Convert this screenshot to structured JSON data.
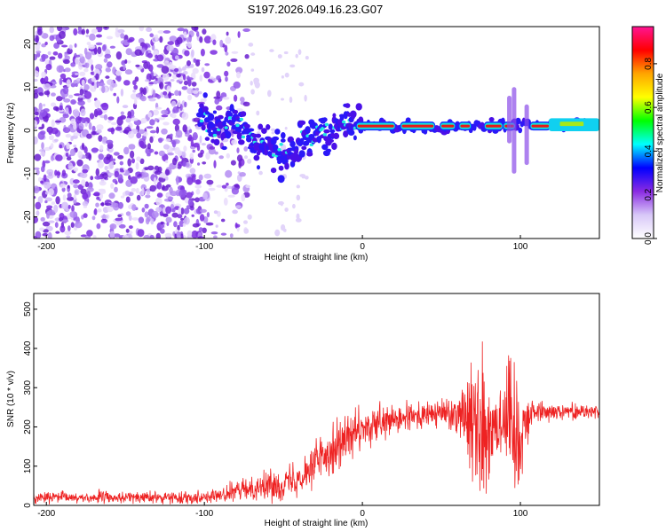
{
  "title": "S197.2026.049.16.23.G07",
  "chart_data": [
    {
      "type": "heatmap",
      "name": "spectrogram",
      "xlabel": "Height of straight line (km)",
      "ylabel": "Frequency (Hz)",
      "xlim": [
        -208,
        150
      ],
      "ylim": [
        -25,
        24
      ],
      "xticks": [
        -200,
        -100,
        0,
        100
      ],
      "xtick_labels": [
        "-200",
        "-100",
        "0",
        "100"
      ],
      "yticks": [
        -20,
        -10,
        0,
        10,
        20
      ],
      "ytick_labels": [
        "-20",
        "-10",
        "0",
        "10",
        "20"
      ],
      "colorbar": {
        "label": "Normalized spectral amplitude",
        "range": [
          0.0,
          0.97
        ],
        "ticks": [
          0.0,
          0.2,
          0.4,
          0.6,
          0.8
        ],
        "tick_labels": [
          "0.0",
          "0.2",
          "0.4",
          "0.6",
          "0.8"
        ],
        "colors": [
          "#ffffff",
          "#d8c8f8",
          "#8a2be2",
          "#0000ff",
          "#00ffff",
          "#00ff00",
          "#ffff00",
          "#ffa500",
          "#ff0000",
          "#ff1493"
        ]
      },
      "ridge": {
        "x": [
          -100,
          -90,
          -80,
          -70,
          -60,
          -50,
          -40,
          -30,
          -20,
          -15,
          -10,
          0,
          20,
          40,
          60,
          80,
          100,
          120,
          150
        ],
        "freq": [
          3,
          0,
          2,
          -2,
          -4,
          -6,
          -3,
          -1,
          0,
          2,
          1,
          1,
          1,
          1,
          1,
          1,
          1,
          1.5,
          1.5
        ]
      }
    },
    {
      "type": "line",
      "name": "snr",
      "xlabel": "Height of straight line (km)",
      "ylabel": "SNR (10 * v/v)",
      "xlim": [
        -208,
        150
      ],
      "ylim": [
        0,
        540
      ],
      "xticks": [
        -200,
        -100,
        0,
        100
      ],
      "xtick_labels": [
        "-200",
        "-100",
        "0",
        "100"
      ],
      "yticks": [
        0,
        100,
        200,
        300,
        400,
        500
      ],
      "ytick_labels": [
        "0",
        "100",
        "200",
        "300",
        "400",
        "500"
      ],
      "color": "#ee2222",
      "envelope": {
        "x": [
          -208,
          -180,
          -150,
          -120,
          -100,
          -90,
          -80,
          -70,
          -60,
          -50,
          -40,
          -30,
          -20,
          -10,
          0,
          10,
          20,
          30,
          40,
          50,
          60,
          65,
          70,
          75,
          80,
          85,
          90,
          95,
          100,
          105,
          110,
          120,
          130,
          140,
          150
        ],
        "mean": [
          20,
          20,
          20,
          20,
          22,
          25,
          35,
          45,
          50,
          55,
          75,
          110,
          145,
          170,
          190,
          205,
          215,
          225,
          230,
          235,
          240,
          235,
          215,
          200,
          205,
          215,
          225,
          205,
          190,
          230,
          240,
          240,
          240,
          240,
          240
        ],
        "noise": [
          10,
          12,
          12,
          12,
          12,
          14,
          18,
          22,
          25,
          30,
          35,
          45,
          50,
          50,
          40,
          35,
          30,
          28,
          25,
          30,
          40,
          70,
          120,
          150,
          130,
          110,
          100,
          130,
          120,
          40,
          20,
          15,
          15,
          15,
          15
        ]
      }
    }
  ]
}
